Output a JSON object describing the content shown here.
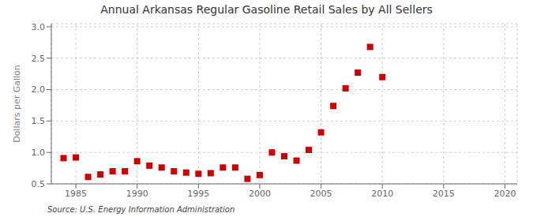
{
  "chart_data": {
    "type": "scatter",
    "title": "Annual Arkansas Regular Gasoline Retail Sales by All Sellers",
    "ylabel": "Dollars per Gallon",
    "annotations": [
      "Source: U.S. Energy Information Administration"
    ],
    "x": [
      1984,
      1985,
      1986,
      1987,
      1988,
      1989,
      1990,
      1991,
      1992,
      1993,
      1994,
      1995,
      1996,
      1997,
      1998,
      1999,
      2000,
      2001,
      2002,
      2003,
      2004,
      2005,
      2006,
      2007,
      2008,
      2009,
      2010
    ],
    "values": [
      0.91,
      0.92,
      0.61,
      0.65,
      0.7,
      0.7,
      0.86,
      0.79,
      0.76,
      0.7,
      0.68,
      0.66,
      0.67,
      0.76,
      0.76,
      0.58,
      0.64,
      1.0,
      0.94,
      0.87,
      1.04,
      1.32,
      1.74,
      2.02,
      2.27,
      2.68,
      2.2
    ],
    "color": "#cc0000",
    "marker": "square",
    "xlim": [
      1983,
      2021
    ],
    "ylim": [
      0.5,
      3.05
    ],
    "xticks": [
      1985,
      1990,
      1995,
      2000,
      2005,
      2010,
      2015,
      2020
    ],
    "yticks": [
      0.5,
      {
        "value": 1,
        "label": "1.0"
      },
      1.5,
      {
        "value": 2,
        "label": "2.0"
      },
      2.5,
      {
        "value": 3,
        "label": "3.0"
      }
    ],
    "grid": true
  }
}
